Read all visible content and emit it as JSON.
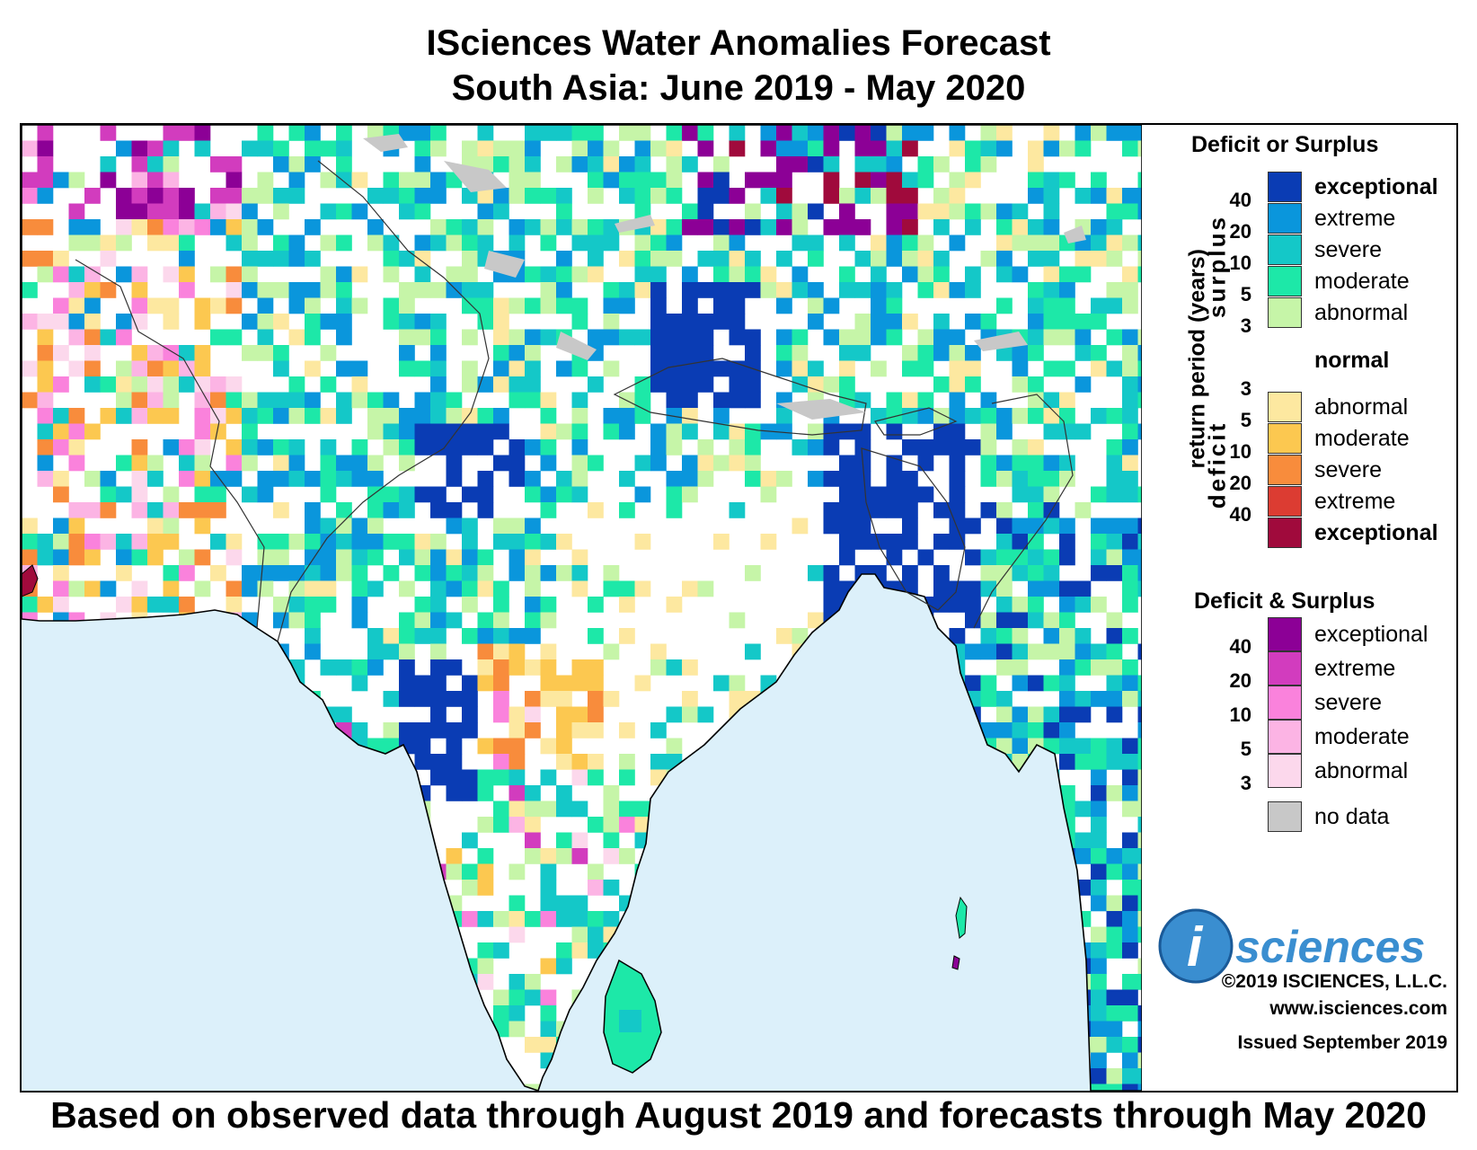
{
  "title": {
    "line1": "ISciences Water Anomalies Forecast",
    "line2": "South Asia: June 2019 - May 2020"
  },
  "colors": {
    "ocean": "#dcf0fa",
    "normal": "#ffffff",
    "no_data": "#c8c8c8",
    "surplus": [
      "#c6f5a8",
      "#1de8a8",
      "#14c8c8",
      "#0a96dc",
      "#0a3cb4"
    ],
    "deficit": [
      "#fde8a0",
      "#fcc850",
      "#f88c3c",
      "#dc3c32",
      "#a00a3c"
    ],
    "both": [
      "#fcd8ec",
      "#fcb4e4",
      "#fa82dc",
      "#d23cbe",
      "#8c0096"
    ]
  },
  "legend": {
    "section1_title": "Deficit or Surplus",
    "surplus_axis": "surplus",
    "deficit_axis": "deficit",
    "return_period": "return period (years)",
    "surplus_labels": [
      "exceptional",
      "extreme",
      "severe",
      "moderate",
      "abnormal"
    ],
    "normal_label": "normal",
    "deficit_labels": [
      "abnormal",
      "moderate",
      "severe",
      "extreme",
      "exceptional"
    ],
    "surplus_numbers": [
      "40",
      "20",
      "10",
      "5",
      "3"
    ],
    "deficit_numbers": [
      "3",
      "5",
      "10",
      "20",
      "40"
    ],
    "section2_title": "Deficit & Surplus",
    "both_labels": [
      "exceptional",
      "extreme",
      "severe",
      "moderate",
      "abnormal"
    ],
    "both_numbers": [
      "40",
      "20",
      "10",
      "5",
      "3"
    ],
    "no_data_label": "no data"
  },
  "branding": {
    "logo_i": "i",
    "logo_text": "sciences",
    "copyright": "©2019 ISCIENCES, L.L.C.",
    "website": "www.isciences.com",
    "issued": "Issued September 2019"
  },
  "footer": "Based on observed data through August 2019 and forecasts through May 2020"
}
